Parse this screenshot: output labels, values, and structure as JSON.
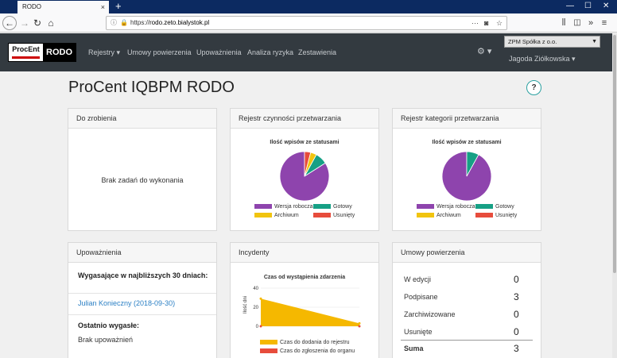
{
  "browser": {
    "tab_title": "RODO",
    "tab_close": "×",
    "new_tab": "+",
    "win_min": "—",
    "win_max": "☐",
    "win_close": "✕",
    "url_host": "rodo.zeto.bialystok.pl",
    "url_prefix": "https://",
    "url_more": "···",
    "icons": [
      "back-arrow",
      "forward-arrow",
      "reload",
      "home",
      "info",
      "lock",
      "pocket",
      "star",
      "library",
      "sidebar",
      "overflow",
      "menu"
    ]
  },
  "app": {
    "logo_procent": "ProcEnt",
    "logo_rodo": "RODO",
    "menu": {
      "rejestry": "Rejestry ▾",
      "umowy": "Umowy powierzenia",
      "upowaznienia": "Upoważnienia",
      "analiza": "Analiza ryzyka",
      "zestawienia": "Zestawienia"
    },
    "gear_label": "⚙ ▾",
    "company": "ZPM Spółka z o.o.",
    "user": "Jagoda Ziółkowska ▾",
    "accent": "#333a40"
  },
  "page": {
    "title": "ProCent IQBPM RODO",
    "help": "?"
  },
  "cards": {
    "todo": {
      "title": "Do zrobienia",
      "empty": "Brak zadań do wykonania"
    },
    "rejestr_czynnosci": {
      "title": "Rejestr czynności przetwarzania",
      "chart_title": "Ilość wpisów ze statusami"
    },
    "rejestr_kategorii": {
      "title": "Rejestr kategorii przetwarzania",
      "chart_title": "Ilość wpisów ze statusami"
    },
    "upowaznienia": {
      "title": "Upoważnienia",
      "expiring_label": "Wygasające w najbliższych 30 dniach:",
      "expiring_item": "Julian Konieczny (2018-09-30)",
      "expired_label": "Ostatnio wygasłe:",
      "expired_empty": "Brak upoważnień"
    },
    "incydenty": {
      "title": "Incydenty",
      "chart_title": "Czas od wystąpienia zdarzenia",
      "y_axis_label": "Ilość dni",
      "legend_1": "Czas do dodania do rejestru",
      "legend_2": "Czas do zgłoszenia do organu"
    },
    "umowy": {
      "title": "Umowy powierzenia",
      "rows": [
        {
          "label": "W edycji",
          "value": "0"
        },
        {
          "label": "Podpisane",
          "value": "3"
        },
        {
          "label": "Zarchiwizowane",
          "value": "0"
        },
        {
          "label": "Usunięte",
          "value": "0"
        }
      ],
      "total_label": "Suma",
      "total_value": "3"
    }
  },
  "chart_data": [
    {
      "type": "pie",
      "title": "Ilość wpisów ze statusami",
      "categories": [
        "Wersja robocza",
        "Gotowy",
        "Archiwum",
        "Usunięty"
      ],
      "values": [
        84,
        8,
        4,
        4
      ],
      "colors": [
        "#8e44ad",
        "#16a085",
        "#f1c40f",
        "#e74c3c"
      ],
      "legend": "bottom"
    },
    {
      "type": "pie",
      "title": "Ilość wpisów ze statusami",
      "categories": [
        "Wersja robocza",
        "Gotowy",
        "Archiwum",
        "Usunięty"
      ],
      "values": [
        92,
        8,
        0,
        0
      ],
      "colors": [
        "#8e44ad",
        "#16a085",
        "#f1c40f",
        "#e74c3c"
      ],
      "legend": "bottom"
    },
    {
      "type": "area",
      "title": "Czas od wystąpienia zdarzenia",
      "ylabel": "Ilość dni",
      "ylim": [
        0,
        40
      ],
      "yticks": [
        "0",
        "20",
        "40"
      ],
      "series": [
        {
          "name": "Czas do dodania do rejestru",
          "values": [
            29,
            3
          ],
          "color": "#f5b800"
        },
        {
          "name": "Czas do zgłoszenia do organu",
          "values": [
            0,
            0
          ],
          "color": "#e74c3c"
        }
      ],
      "legend": "bottom"
    }
  ]
}
